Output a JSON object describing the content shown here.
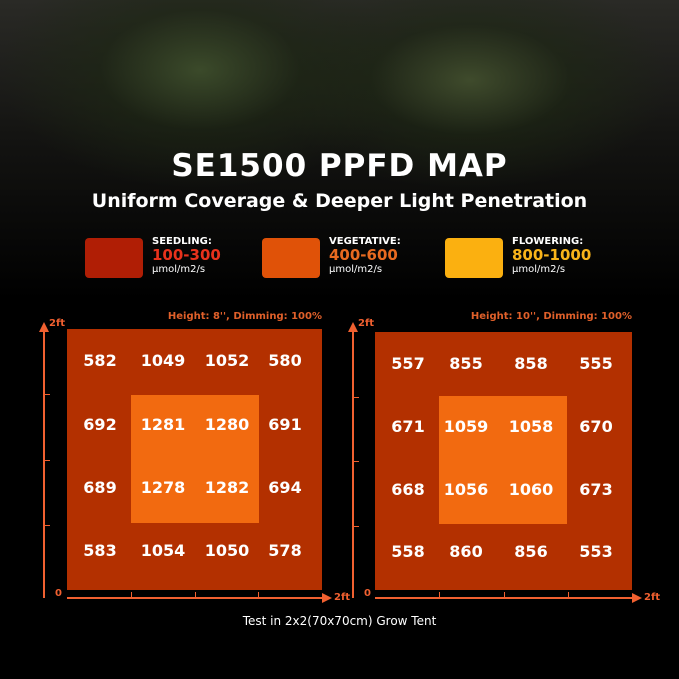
{
  "header": {
    "title": "SE1500 PPFD MAP",
    "subtitle": "Uniform Coverage & Deeper Light Penetration"
  },
  "legend": [
    {
      "name": "SEEDLING:",
      "range": "100-300",
      "unit": "μmol/m2/s",
      "color": "#b01e05",
      "text_color": "#e8321c"
    },
    {
      "name": "VEGETATIVE:",
      "range": "400-600",
      "unit": "μmol/m2/s",
      "color": "#e05208",
      "text_color": "#e86a20"
    },
    {
      "name": "FLOWERING:",
      "range": "800-1000",
      "unit": "μmol/m2/s",
      "color": "#fbb010",
      "text_color": "#f9b41a"
    }
  ],
  "chart_data": [
    {
      "type": "heatmap",
      "title": "Height: 8'', Dimming: 100%",
      "x_max_label": "2ft",
      "y_max_label": "2ft",
      "origin_label": "0",
      "values": [
        [
          582,
          1049,
          1052,
          580
        ],
        [
          692,
          1281,
          1280,
          691
        ],
        [
          689,
          1278,
          1282,
          694
        ],
        [
          583,
          1054,
          1050,
          578
        ]
      ]
    },
    {
      "type": "heatmap",
      "title": "Height: 10'', Dimming: 100%",
      "x_max_label": "2ft",
      "y_max_label": "2ft",
      "origin_label": "0",
      "values": [
        [
          557,
          855,
          858,
          555
        ],
        [
          671,
          1059,
          1058,
          670
        ],
        [
          668,
          1056,
          1060,
          673
        ],
        [
          558,
          860,
          856,
          553
        ]
      ]
    }
  ],
  "colors": {
    "outer": "#b33000",
    "inner": "#f26a10",
    "axis": "#f06030"
  },
  "footer": "Test in 2x2(70x70cm) Grow Tent"
}
